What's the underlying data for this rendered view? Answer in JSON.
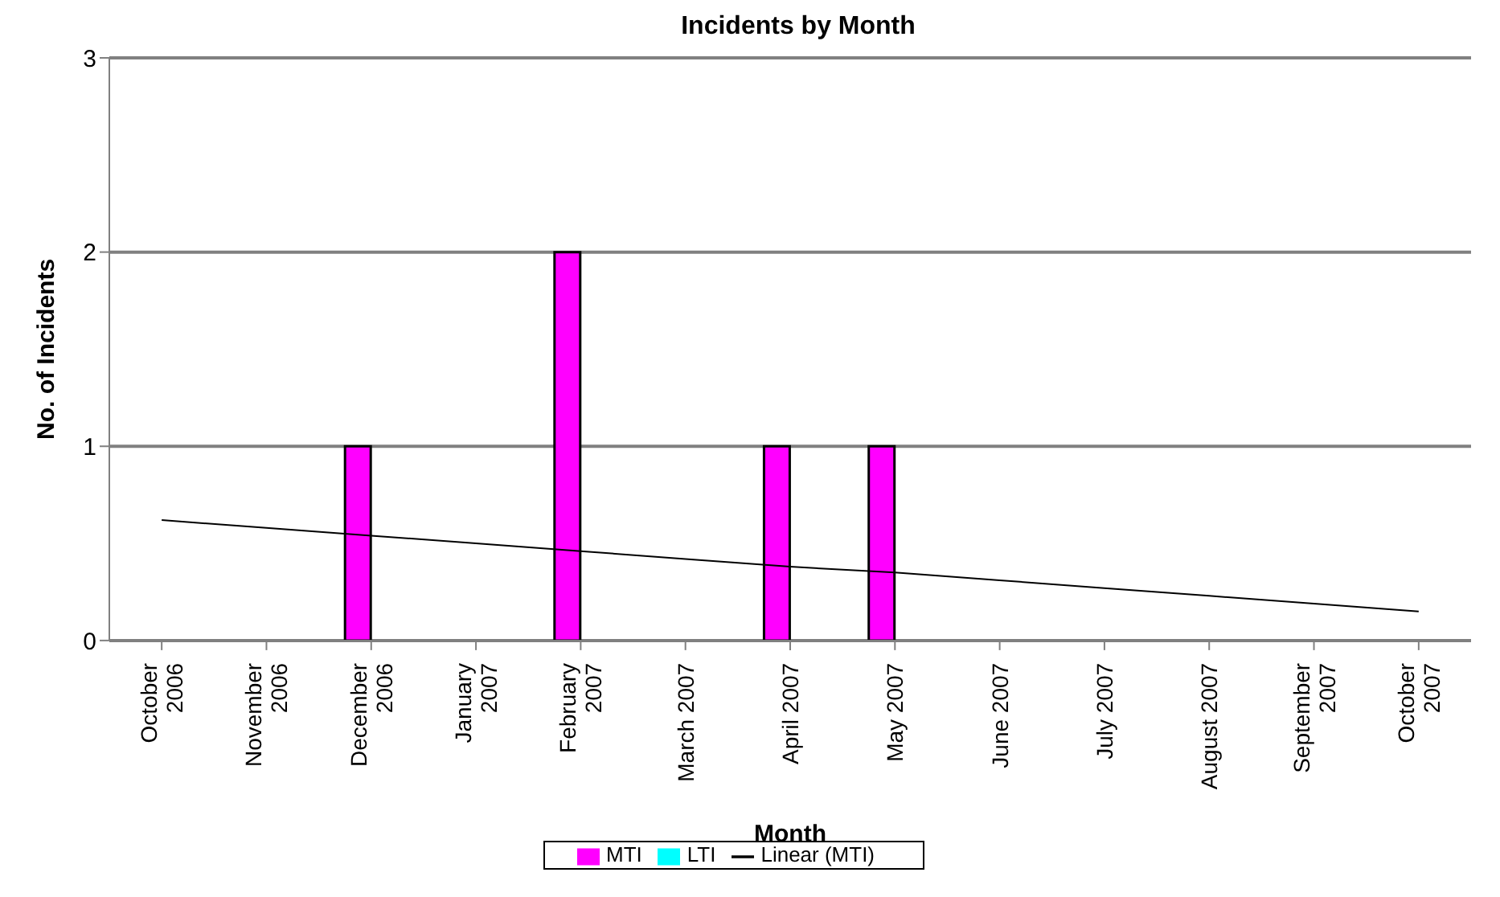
{
  "chart_data": {
    "type": "bar",
    "title": "Incidents by Month",
    "xlabel": "Month",
    "ylabel": "No. of Incidents",
    "categories": [
      "October 2006",
      "November 2006",
      "December 2006",
      "January 2007",
      "February 2007",
      "March 2007",
      "April 2007",
      "May 2007",
      "June 2007",
      "July 2007",
      "August 2007",
      "September 2007",
      "October 2007"
    ],
    "series": [
      {
        "name": "MTI",
        "color": "#ff00ff",
        "values": [
          0,
          0,
          1,
          0,
          2,
          0,
          1,
          1,
          0,
          0,
          0,
          0,
          0
        ]
      },
      {
        "name": "LTI",
        "color": "#00ffff",
        "values": [
          0,
          0,
          0,
          0,
          0,
          0,
          0,
          0,
          0,
          0,
          0,
          0,
          0
        ]
      },
      {
        "name": "Linear (MTI)",
        "type": "line",
        "color": "#000000",
        "values": [
          0.62,
          0.58,
          0.54,
          0.5,
          0.46,
          0.42,
          0.38,
          0.35,
          0.31,
          0.27,
          0.23,
          0.19,
          0.15
        ]
      }
    ],
    "ylim": [
      0,
      3
    ],
    "yticks": [
      0,
      1,
      2,
      3
    ],
    "grid": "y",
    "legend": "bottom",
    "marker": "none",
    "line_style": "solid"
  }
}
